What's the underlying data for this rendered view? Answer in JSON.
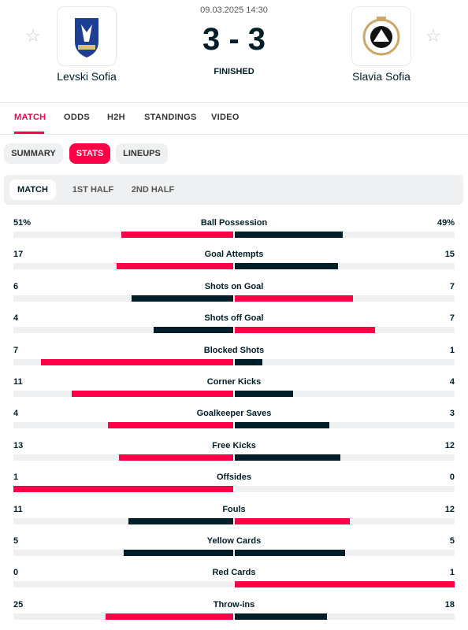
{
  "header": {
    "datetime": "09.03.2025 14:30",
    "status": "FINISHED",
    "home_team": "Levski Sofia",
    "away_team": "Slavia Sofia",
    "score": {
      "home": "3",
      "separator": "-",
      "away": "3"
    }
  },
  "nav": {
    "tabs": [
      "MATCH",
      "ODDS",
      "H2H",
      "STANDINGS",
      "VIDEO"
    ],
    "active": 0
  },
  "subnav": {
    "tabs": [
      "SUMMARY",
      "STATS",
      "LINEUPS"
    ],
    "active": 1
  },
  "periods": {
    "tabs": [
      "MATCH",
      "1ST HALF",
      "2ND HALF"
    ],
    "active": 0
  },
  "stats": {
    "rows": [
      {
        "name": "Ball Possession",
        "home": 51,
        "away": 49,
        "home_label": "51%",
        "away_label": "49%"
      },
      {
        "name": "Goal Attempts",
        "home": 17,
        "away": 15
      },
      {
        "name": "Shots on Goal",
        "home": 6,
        "away": 7
      },
      {
        "name": "Shots off Goal",
        "home": 4,
        "away": 7
      },
      {
        "name": "Blocked Shots",
        "home": 7,
        "away": 1
      },
      {
        "name": "Corner Kicks",
        "home": 11,
        "away": 4
      },
      {
        "name": "Goalkeeper Saves",
        "home": 4,
        "away": 3
      },
      {
        "name": "Free Kicks",
        "home": 13,
        "away": 12
      },
      {
        "name": "Offsides",
        "home": 1,
        "away": 0
      },
      {
        "name": "Fouls",
        "home": 11,
        "away": 12
      },
      {
        "name": "Yellow Cards",
        "home": 5,
        "away": 5
      },
      {
        "name": "Red Cards",
        "home": 0,
        "away": 1
      },
      {
        "name": "Throw-ins",
        "home": 25,
        "away": 18
      }
    ]
  }
}
